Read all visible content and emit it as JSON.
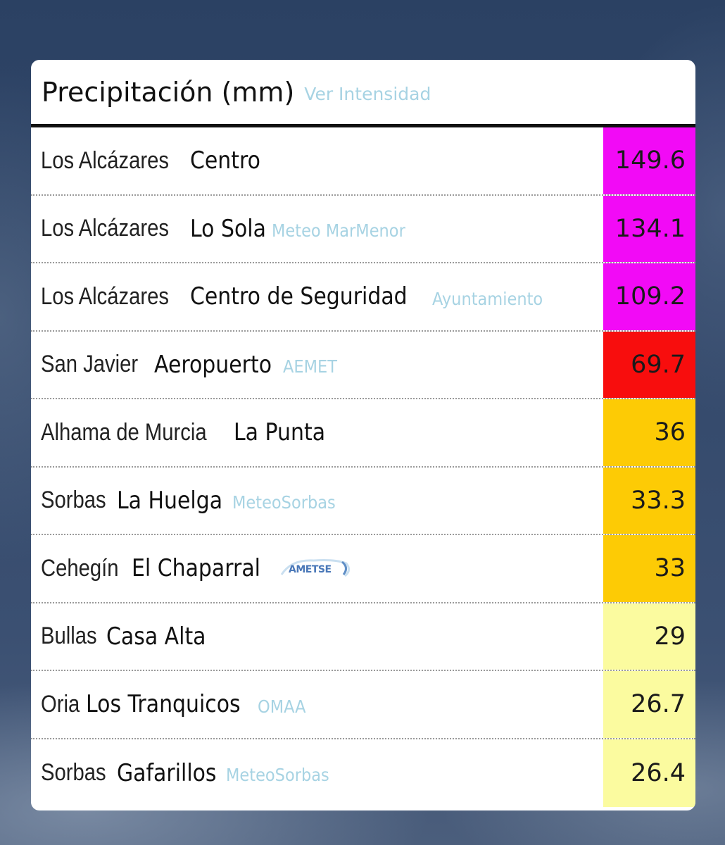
{
  "header": {
    "title": "Precipitación (mm)",
    "link_label": "Ver Intensidad"
  },
  "colors": {
    "magenta": "#f20af6",
    "red": "#f80d0d",
    "orange": "#fdcb05",
    "light_yellow": "#fbfb9f",
    "link": "#a7d3e3"
  },
  "rows": [
    {
      "municipality": "Los Alcázares",
      "station": "Centro",
      "source": "",
      "value": "149.6",
      "color": "#f20af6"
    },
    {
      "municipality": "Los Alcázares",
      "station": "Lo Sola",
      "source": "Meteo MarMenor",
      "value": "134.1",
      "color": "#f20af6"
    },
    {
      "municipality": "Los Alcázares",
      "station": "Centro de Seguridad",
      "source": "Ayuntamiento",
      "value": "109.2",
      "color": "#f20af6"
    },
    {
      "municipality": "San Javier",
      "station": "Aeropuerto",
      "source": "AEMET",
      "value": "69.7",
      "color": "#f80d0d"
    },
    {
      "municipality": "Alhama de Murcia",
      "station": "La Punta",
      "source": "",
      "value": "36",
      "color": "#fdcb05"
    },
    {
      "municipality": "Sorbas",
      "station": "La Huelga",
      "source": "MeteoSorbas",
      "value": "33.3",
      "color": "#fdcb05"
    },
    {
      "municipality": "Cehegín",
      "station": "El Chaparral",
      "source": "",
      "logo": "AMETSE",
      "value": "33",
      "color": "#fdcb05"
    },
    {
      "municipality": "Bullas",
      "station": "Casa Alta",
      "source": "",
      "value": "29",
      "color": "#fbfb9f"
    },
    {
      "municipality": "Oria",
      "station": "Los Tranquicos",
      "source": "OMAA",
      "value": "26.7",
      "color": "#fbfb9f"
    },
    {
      "municipality": "Sorbas",
      "station": "Gafarillos",
      "source": "MeteoSorbas",
      "value": "26.4",
      "color": "#fbfb9f"
    }
  ]
}
